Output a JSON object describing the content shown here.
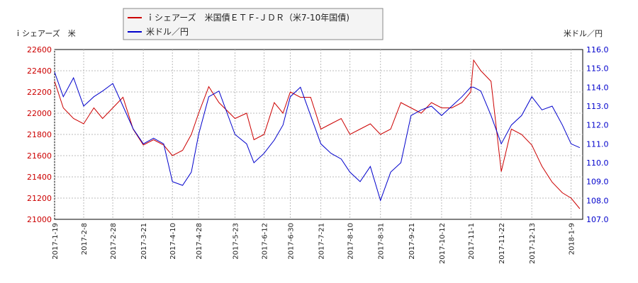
{
  "chart_data": {
    "type": "line",
    "legend_position": "top",
    "grid": true,
    "y_left_label": "ｉシェアーズ　米",
    "y_right_label": "米ドル／円",
    "ylim_left": [
      21000,
      22600
    ],
    "ylim_right": [
      107.0,
      116.0
    ],
    "y_left_ticks": [
      21000,
      21200,
      21400,
      21600,
      21800,
      22000,
      22200,
      22400,
      22600
    ],
    "y_right_ticks": [
      "107.0",
      "108.0",
      "109.0",
      "110.0",
      "111.0",
      "112.0",
      "113.0",
      "114.0",
      "115.0",
      "116.0"
    ],
    "x_ticks": [
      "2017-1-19",
      "2017-2-8",
      "2017-2-28",
      "2017-3-21",
      "2017-4-10",
      "2017-4-28",
      "2017-5-23",
      "2017-6-12",
      "2017-6-30",
      "2017-7-21",
      "2017-8-10",
      "2017-8-31",
      "2017-9-21",
      "2017-10-12",
      "2017-11-1",
      "2017-11-22",
      "2017-12-13",
      "2018-1-9"
    ],
    "colors": {
      "series1": "#cc0000",
      "series2": "#0000cc",
      "grid": "#bbbbbb"
    },
    "series": [
      {
        "name": "ｉシェアーズ　米国債ＥＴＦ-ＪＤＲ（米7-10年国債)",
        "axis": "left",
        "x": [
          "2017-1-19",
          "2017-1-25",
          "2017-2-1",
          "2017-2-8",
          "2017-2-15",
          "2017-2-21",
          "2017-2-28",
          "2017-3-7",
          "2017-3-14",
          "2017-3-21",
          "2017-3-28",
          "2017-4-4",
          "2017-4-10",
          "2017-4-17",
          "2017-4-23",
          "2017-4-28",
          "2017-5-5",
          "2017-5-12",
          "2017-5-23",
          "2017-5-31",
          "2017-6-5",
          "2017-6-12",
          "2017-6-19",
          "2017-6-25",
          "2017-6-30",
          "2017-7-7",
          "2017-7-14",
          "2017-7-21",
          "2017-7-28",
          "2017-8-4",
          "2017-8-10",
          "2017-8-17",
          "2017-8-24",
          "2017-8-31",
          "2017-9-7",
          "2017-9-14",
          "2017-9-21",
          "2017-9-28",
          "2017-10-5",
          "2017-10-12",
          "2017-10-19",
          "2017-10-26",
          "2017-11-1",
          "2017-11-3",
          "2017-11-8",
          "2017-11-15",
          "2017-11-22",
          "2017-11-29",
          "2017-12-6",
          "2017-12-13",
          "2017-12-20",
          "2017-12-27",
          "2018-1-3",
          "2018-1-9",
          "2018-1-15"
        ],
        "values": [
          22300,
          22050,
          21950,
          21900,
          22050,
          21950,
          22050,
          22150,
          21850,
          21700,
          21750,
          21700,
          21600,
          21650,
          21800,
          22000,
          22250,
          22100,
          21950,
          22000,
          21750,
          21800,
          22100,
          22000,
          22200,
          22150,
          22150,
          21850,
          21900,
          21950,
          21800,
          21850,
          21900,
          21800,
          21850,
          22100,
          22050,
          22000,
          22100,
          22050,
          22050,
          22100,
          22200,
          22500,
          22400,
          22300,
          21450,
          21850,
          21800,
          21700,
          21500,
          21350,
          21250,
          21200,
          21100
        ]
      },
      {
        "name": "米ドル／円",
        "axis": "right",
        "x": [
          "2017-1-19",
          "2017-1-25",
          "2017-2-1",
          "2017-2-8",
          "2017-2-15",
          "2017-2-21",
          "2017-2-28",
          "2017-3-7",
          "2017-3-14",
          "2017-3-21",
          "2017-3-28",
          "2017-4-4",
          "2017-4-10",
          "2017-4-17",
          "2017-4-23",
          "2017-4-28",
          "2017-5-5",
          "2017-5-12",
          "2017-5-23",
          "2017-5-31",
          "2017-6-5",
          "2017-6-12",
          "2017-6-19",
          "2017-6-25",
          "2017-6-30",
          "2017-7-7",
          "2017-7-14",
          "2017-7-21",
          "2017-7-28",
          "2017-8-4",
          "2017-8-10",
          "2017-8-17",
          "2017-8-24",
          "2017-8-31",
          "2017-9-7",
          "2017-9-14",
          "2017-9-21",
          "2017-9-28",
          "2017-10-5",
          "2017-10-12",
          "2017-10-19",
          "2017-10-26",
          "2017-11-1",
          "2017-11-3",
          "2017-11-8",
          "2017-11-15",
          "2017-11-22",
          "2017-11-29",
          "2017-12-6",
          "2017-12-13",
          "2017-12-20",
          "2017-12-27",
          "2018-1-3",
          "2018-1-9",
          "2018-1-15"
        ],
        "values": [
          114.8,
          113.5,
          114.5,
          113.0,
          113.5,
          113.8,
          114.2,
          113.0,
          111.8,
          111.0,
          111.3,
          111.0,
          109.0,
          108.8,
          109.5,
          111.5,
          113.5,
          113.8,
          111.5,
          111.0,
          110.0,
          110.5,
          111.2,
          112.0,
          113.5,
          114.0,
          112.5,
          111.0,
          110.5,
          110.2,
          109.5,
          109.0,
          109.8,
          108.0,
          109.5,
          110.0,
          112.5,
          112.8,
          113.0,
          112.5,
          113.0,
          113.5,
          114.0,
          114.0,
          113.8,
          112.5,
          111.0,
          112.0,
          112.5,
          113.5,
          112.8,
          113.0,
          112.0,
          111.0,
          110.8
        ]
      }
    ]
  }
}
